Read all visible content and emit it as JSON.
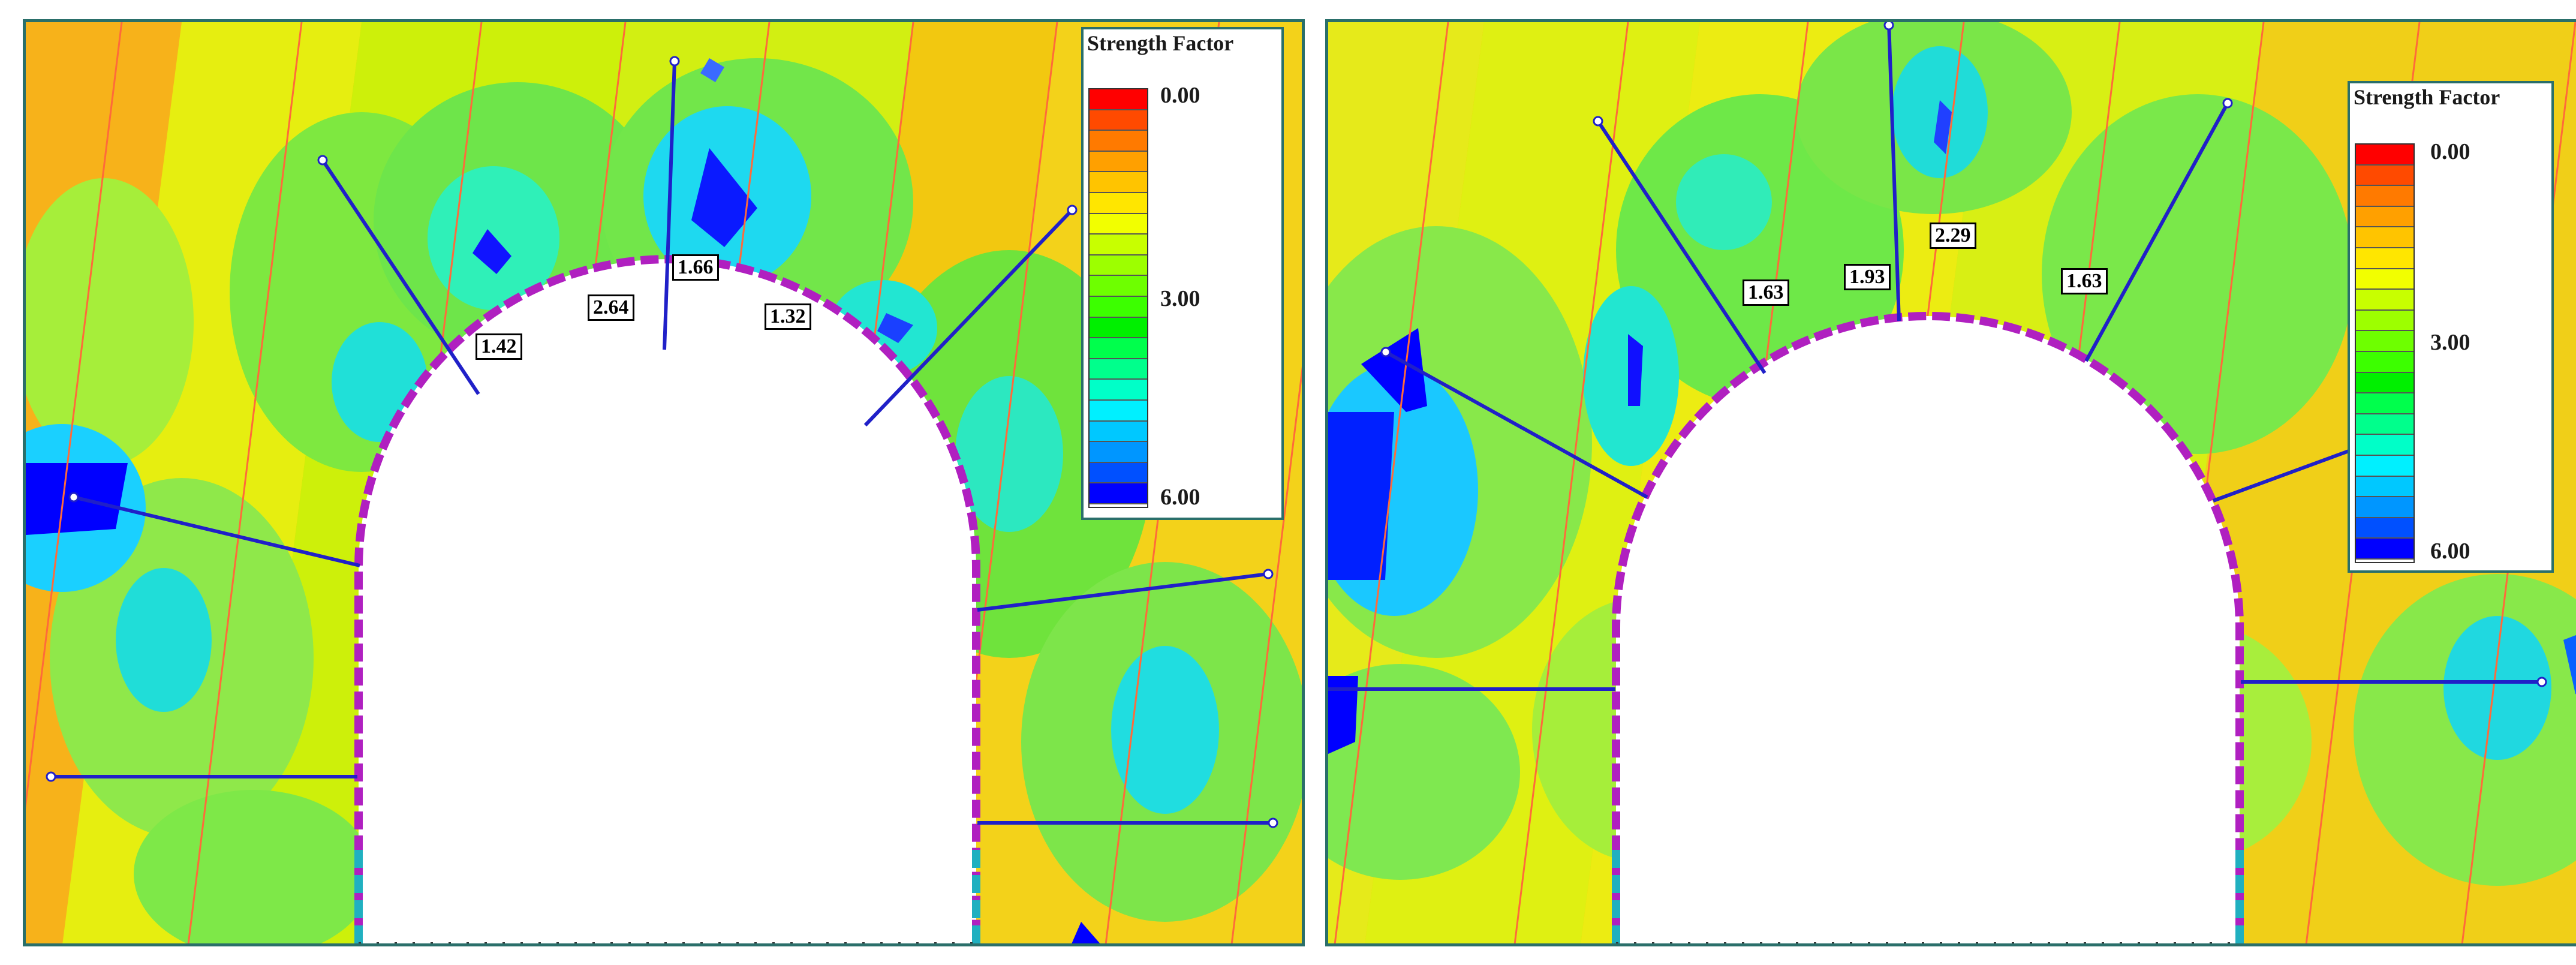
{
  "legend": {
    "title": "Strength Factor",
    "ticks": [
      "0.00",
      "3.00",
      "6.00"
    ]
  },
  "color_scale": [
    "#ff0000",
    "#ff4a00",
    "#ff7a00",
    "#ffa000",
    "#ffc400",
    "#ffe600",
    "#f2ff00",
    "#c8ff00",
    "#9dff00",
    "#6eff00",
    "#3cff00",
    "#00f000",
    "#00ff4c",
    "#00ff8c",
    "#00ffc8",
    "#00f0ff",
    "#00c8ff",
    "#0096ff",
    "#0050ff",
    "#0000ff"
  ],
  "panels": [
    {
      "labels": [
        "1.42",
        "2.64",
        "1.66",
        "1.32"
      ]
    },
    {
      "labels": [
        "1.63",
        "1.93",
        "2.29",
        "1.63"
      ]
    }
  ]
}
